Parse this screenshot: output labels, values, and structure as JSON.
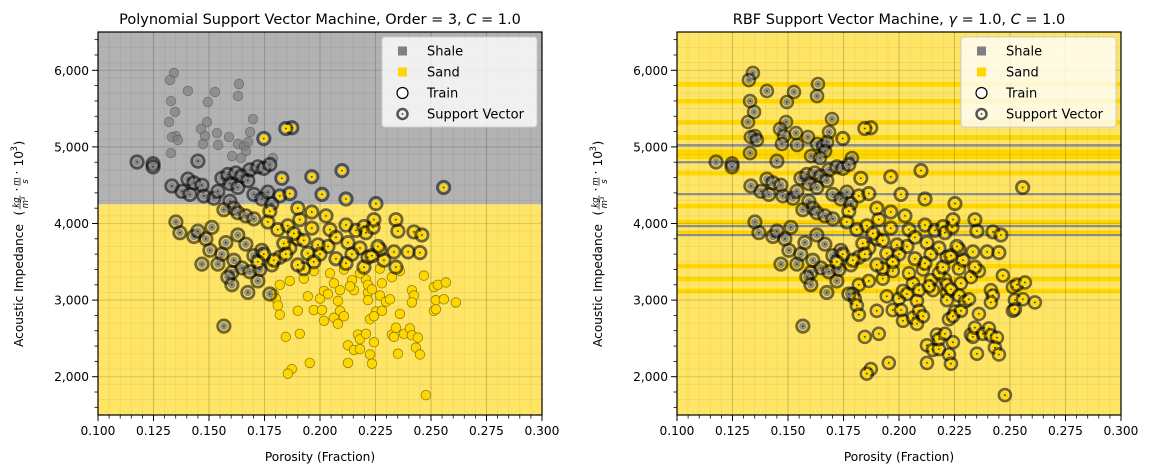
{
  "colors": {
    "shale": "#808080",
    "sand": "#FFD700",
    "shale_region": "#B2B2B2",
    "sand_region": "#FFE566",
    "support_vector_edge": "#000000"
  },
  "chart_data": [
    {
      "type": "scatter",
      "id": "poly",
      "title_parts": [
        "Polynomial Support Vector Machine, Order = 3, ",
        "C",
        " = 1.0"
      ],
      "xlabel": "Porosity (Fraction)",
      "ylabel": "Acoustic Impedance",
      "ylabel_units": [
        "kg",
        "m³",
        "m",
        "s",
        "10",
        "3"
      ],
      "xlim": [
        0.1,
        0.3
      ],
      "ylim": [
        1500,
        6500
      ],
      "x_ticks": [
        0.1,
        0.125,
        0.15,
        0.175,
        0.2,
        0.225,
        0.25,
        0.275,
        0.3
      ],
      "x_tick_labels": [
        "0.100",
        "0.125",
        "0.150",
        "0.175",
        "0.200",
        "0.225",
        "0.250",
        "0.275",
        "0.300"
      ],
      "y_ticks": [
        2000,
        3000,
        4000,
        5000,
        6000
      ],
      "y_tick_labels": [
        "2,000",
        "3,000",
        "4,000",
        "5,000",
        "6,000"
      ],
      "grid": true,
      "legend": {
        "placement": "top-right",
        "entries": [
          "Shale",
          "Sand",
          "Train",
          "Support Vector"
        ]
      },
      "decision_regions": [
        {
          "class": "Shale",
          "ymin": 4250,
          "ymax": 6500
        },
        {
          "class": "Sand",
          "ymin": 1500,
          "ymax": 4250
        }
      ]
    },
    {
      "type": "scatter",
      "id": "rbf",
      "title_parts": [
        "RBF Support Vector Machine, ",
        "γ",
        " = 1.0, ",
        "C",
        " = 1.0"
      ],
      "xlabel": "Porosity (Fraction)",
      "ylabel": "Acoustic Impedance",
      "ylabel_units": [
        "kg",
        "m³",
        "m",
        "s",
        "10",
        "3"
      ],
      "xlim": [
        0.1,
        0.3
      ],
      "ylim": [
        1500,
        6500
      ],
      "x_ticks": [
        0.1,
        0.125,
        0.15,
        0.175,
        0.2,
        0.225,
        0.25,
        0.275,
        0.3
      ],
      "x_tick_labels": [
        "0.100",
        "0.125",
        "0.150",
        "0.175",
        "0.200",
        "0.225",
        "0.250",
        "0.275",
        "0.300"
      ],
      "y_ticks": [
        2000,
        3000,
        4000,
        5000,
        6000
      ],
      "y_tick_labels": [
        "2,000",
        "3,000",
        "4,000",
        "5,000",
        "6,000"
      ],
      "grid": true,
      "legend": {
        "placement": "top-right",
        "entries": [
          "Shale",
          "Sand",
          "Train",
          "Support Vector"
        ]
      },
      "decision_bands": [
        {
          "class": "Sand",
          "y": 5817
        },
        {
          "class": "Sand",
          "y": 5596
        },
        {
          "class": "Sand",
          "y": 5322
        },
        {
          "class": "Sand",
          "y": 5126
        },
        {
          "class": "Shale",
          "y": 5022
        },
        {
          "class": "Sand",
          "y": 4905,
          "height": 130
        },
        {
          "class": "Shale",
          "y": 4800
        },
        {
          "class": "Sand",
          "y": 4657
        },
        {
          "class": "Shale",
          "y": 4383
        },
        {
          "class": "Sand",
          "y": 4227
        },
        {
          "class": "Sand",
          "y": 4018
        },
        {
          "class": "Shale",
          "y": 3966
        },
        {
          "class": "Sand",
          "y": 3875
        },
        {
          "class": "Shale",
          "y": 3849
        },
        {
          "class": "Sand",
          "y": 3445
        },
        {
          "class": "Sand",
          "y": 3275
        },
        {
          "class": "Sand",
          "y": 3119
        }
      ]
    }
  ],
  "points": {
    "shale_test": [
      [
        0.1342,
        5965
      ],
      [
        0.1324,
        5873
      ],
      [
        0.1405,
        5730
      ],
      [
        0.1527,
        5717
      ],
      [
        0.1635,
        5821
      ],
      [
        0.1631,
        5664
      ],
      [
        0.1329,
        5599
      ],
      [
        0.1495,
        5586
      ],
      [
        0.1347,
        5456
      ],
      [
        0.132,
        5325
      ],
      [
        0.1491,
        5325
      ],
      [
        0.1698,
        5364
      ],
      [
        0.1464,
        5234
      ],
      [
        0.1536,
        5181
      ],
      [
        0.1351,
        5142
      ],
      [
        0.1333,
        5129
      ],
      [
        0.136,
        5090
      ],
      [
        0.1482,
        5142
      ],
      [
        0.1685,
        5194
      ],
      [
        0.159,
        5129
      ],
      [
        0.1473,
        5038
      ],
      [
        0.1541,
        5025
      ],
      [
        0.1631,
        5038
      ],
      [
        0.1658,
        5012
      ],
      [
        0.1676,
        5064
      ],
      [
        0.1667,
        4946
      ],
      [
        0.1329,
        4920
      ],
      [
        0.1604,
        4881
      ],
      [
        0.1644,
        4855
      ],
      [
        0.1788,
        4855
      ]
    ],
    "shale_train": [
      [
        0.1176,
        4803
      ],
      [
        0.1248,
        4780
      ],
      [
        0.1248,
        4740
      ],
      [
        0.145,
        4815
      ],
      [
        0.1333,
        4490
      ],
      [
        0.1405,
        4580
      ],
      [
        0.1432,
        4530
      ],
      [
        0.1378,
        4420
      ],
      [
        0.1414,
        4380
      ],
      [
        0.1477,
        4360
      ],
      [
        0.1468,
        4500
      ],
      [
        0.1522,
        4330
      ],
      [
        0.154,
        4420
      ],
      [
        0.1558,
        4590
      ],
      [
        0.1585,
        4640
      ],
      [
        0.1594,
        4520
      ],
      [
        0.1621,
        4660
      ],
      [
        0.1648,
        4620
      ],
      [
        0.163,
        4470
      ],
      [
        0.1675,
        4560
      ],
      [
        0.1684,
        4700
      ],
      [
        0.172,
        4740
      ],
      [
        0.1747,
        4720
      ],
      [
        0.1774,
        4770
      ],
      [
        0.1702,
        4380
      ],
      [
        0.1738,
        4320
      ],
      [
        0.1765,
        4410
      ],
      [
        0.1783,
        4260
      ],
      [
        0.1594,
        4290
      ],
      [
        0.1612,
        4200
      ],
      [
        0.1567,
        4180
      ],
      [
        0.163,
        4140
      ],
      [
        0.1666,
        4100
      ],
      [
        0.1702,
        4060
      ],
      [
        0.1351,
        4020
      ],
      [
        0.1369,
        3880
      ],
      [
        0.1432,
        3830
      ],
      [
        0.1486,
        3800
      ],
      [
        0.1504,
        3650
      ],
      [
        0.1558,
        3600
      ],
      [
        0.154,
        3470
      ],
      [
        0.1468,
        3470
      ],
      [
        0.1603,
        3360
      ],
      [
        0.1585,
        3300
      ],
      [
        0.1603,
        3200
      ],
      [
        0.1675,
        3100
      ],
      [
        0.172,
        3250
      ],
      [
        0.1774,
        3080
      ],
      [
        0.1567,
        2660
      ],
      [
        0.163,
        3850
      ],
      [
        0.1666,
        3730
      ],
      [
        0.1702,
        3580
      ],
      [
        0.1738,
        3650
      ],
      [
        0.1612,
        3520
      ],
      [
        0.1648,
        3420
      ],
      [
        0.1684,
        3370
      ],
      [
        0.1729,
        3400
      ],
      [
        0.1576,
        3750
      ],
      [
        0.1513,
        3950
      ],
      [
        0.145,
        3900
      ]
    ],
    "sand_train": [
      [
        0.1873,
        5250
      ],
      [
        0.1846,
        5240
      ],
      [
        0.1747,
        5110
      ],
      [
        0.1963,
        4610
      ],
      [
        0.2099,
        4690
      ],
      [
        0.2009,
        4380
      ],
      [
        0.2117,
        4320
      ],
      [
        0.2252,
        4260
      ],
      [
        0.2557,
        4470
      ],
      [
        0.1828,
        4590
      ],
      [
        0.1819,
        4360
      ],
      [
        0.1864,
        4390
      ],
      [
        0.19,
        4200
      ],
      [
        0.1963,
        4150
      ],
      [
        0.2027,
        4100
      ],
      [
        0.1774,
        4160
      ],
      [
        0.1765,
        4020
      ],
      [
        0.181,
        3920
      ],
      [
        0.1855,
        3970
      ],
      [
        0.1909,
        4050
      ],
      [
        0.1963,
        3940
      ],
      [
        0.2045,
        3920
      ],
      [
        0.2117,
        3980
      ],
      [
        0.2162,
        3910
      ],
      [
        0.2198,
        3960
      ],
      [
        0.2207,
        3880
      ],
      [
        0.2239,
        3950
      ],
      [
        0.2243,
        4050
      ],
      [
        0.2342,
        4050
      ],
      [
        0.2351,
        3900
      ],
      [
        0.2423,
        3890
      ],
      [
        0.2459,
        3850
      ],
      [
        0.2397,
        3630
      ],
      [
        0.245,
        3620
      ],
      [
        0.2333,
        3630
      ],
      [
        0.227,
        3660
      ],
      [
        0.2216,
        3560
      ],
      [
        0.218,
        3680
      ],
      [
        0.2144,
        3600
      ],
      [
        0.2117,
        3480
      ],
      [
        0.2072,
        3540
      ],
      [
        0.2036,
        3700
      ],
      [
        0.1991,
        3720
      ],
      [
        0.1945,
        3610
      ],
      [
        0.19,
        3800
      ],
      [
        0.1864,
        3680
      ],
      [
        0.1819,
        3560
      ],
      [
        0.1783,
        3460
      ],
      [
        0.1747,
        3600
      ],
      [
        0.172,
        3500
      ],
      [
        0.1837,
        3740
      ],
      [
        0.1882,
        3870
      ],
      [
        0.1927,
        3780
      ],
      [
        0.2198,
        3430
      ],
      [
        0.2234,
        3580
      ],
      [
        0.2342,
        3430
      ],
      [
        0.2288,
        3520
      ],
      [
        0.2072,
        3820
      ],
      [
        0.2,
        3600
      ],
      [
        0.1972,
        3500
      ],
      [
        0.1927,
        3410
      ],
      [
        0.1792,
        3520
      ],
      [
        0.19,
        3460
      ],
      [
        0.2261,
        3700
      ],
      [
        0.2126,
        3750
      ],
      [
        0.1846,
        3600
      ]
    ],
    "sand_test": [
      [
        0.1864,
        3250
      ],
      [
        0.1819,
        3200
      ],
      [
        0.1792,
        3080
      ],
      [
        0.1801,
        3020
      ],
      [
        0.181,
        2930
      ],
      [
        0.1819,
        2810
      ],
      [
        0.19,
        2860
      ],
      [
        0.1945,
        3050
      ],
      [
        0.1972,
        2870
      ],
      [
        0.2,
        3020
      ],
      [
        0.2009,
        2870
      ],
      [
        0.2018,
        3120
      ],
      [
        0.2036,
        3080
      ],
      [
        0.2018,
        2730
      ],
      [
        0.2063,
        3220
      ],
      [
        0.2063,
        2770
      ],
      [
        0.209,
        3130
      ],
      [
        0.2081,
        2990
      ],
      [
        0.209,
        2860
      ],
      [
        0.2081,
        2690
      ],
      [
        0.2108,
        2790
      ],
      [
        0.2144,
        3260
      ],
      [
        0.2153,
        3130
      ],
      [
        0.2135,
        3180
      ],
      [
        0.2207,
        3270
      ],
      [
        0.2216,
        3100
      ],
      [
        0.2216,
        3000
      ],
      [
        0.2216,
        3200
      ],
      [
        0.2234,
        3140
      ],
      [
        0.227,
        3060
      ],
      [
        0.2279,
        3220
      ],
      [
        0.2297,
        2980
      ],
      [
        0.2315,
        3010
      ],
      [
        0.2252,
        2850
      ],
      [
        0.2225,
        2750
      ],
      [
        0.2243,
        2790
      ],
      [
        0.2279,
        2860
      ],
      [
        0.2324,
        2550
      ],
      [
        0.2333,
        2520
      ],
      [
        0.236,
        2820
      ],
      [
        0.2342,
        2640
      ],
      [
        0.2378,
        2560
      ],
      [
        0.2405,
        2630
      ],
      [
        0.2414,
        2540
      ],
      [
        0.2441,
        2510
      ],
      [
        0.2432,
        2380
      ],
      [
        0.245,
        2290
      ],
      [
        0.2351,
        2300
      ],
      [
        0.2414,
        3130
      ],
      [
        0.2423,
        3060
      ],
      [
        0.2414,
        2970
      ],
      [
        0.2468,
        3320
      ],
      [
        0.2513,
        3170
      ],
      [
        0.2531,
        3200
      ],
      [
        0.2522,
        3000
      ],
      [
        0.2513,
        2860
      ],
      [
        0.2522,
        2880
      ],
      [
        0.2558,
        3010
      ],
      [
        0.2567,
        3230
      ],
      [
        0.2612,
        2970
      ],
      [
        0.1846,
        2520
      ],
      [
        0.1909,
        2560
      ],
      [
        0.1954,
        2180
      ],
      [
        0.1873,
        2100
      ],
      [
        0.1855,
        2040
      ],
      [
        0.2126,
        2410
      ],
      [
        0.2153,
        2350
      ],
      [
        0.218,
        2360
      ],
      [
        0.2126,
        2180
      ],
      [
        0.2171,
        2550
      ],
      [
        0.218,
        2490
      ],
      [
        0.2207,
        2560
      ],
      [
        0.2243,
        2450
      ],
      [
        0.2225,
        2290
      ],
      [
        0.2234,
        2170
      ],
      [
        0.2477,
        1760
      ],
      [
        0.2108,
        3400
      ],
      [
        0.2045,
        3350
      ],
      [
        0.1972,
        3380
      ],
      [
        0.1927,
        3280
      ],
      [
        0.218,
        3350
      ],
      [
        0.227,
        3410
      ],
      [
        0.2324,
        3300
      ],
      [
        0.236,
        3380
      ]
    ]
  }
}
